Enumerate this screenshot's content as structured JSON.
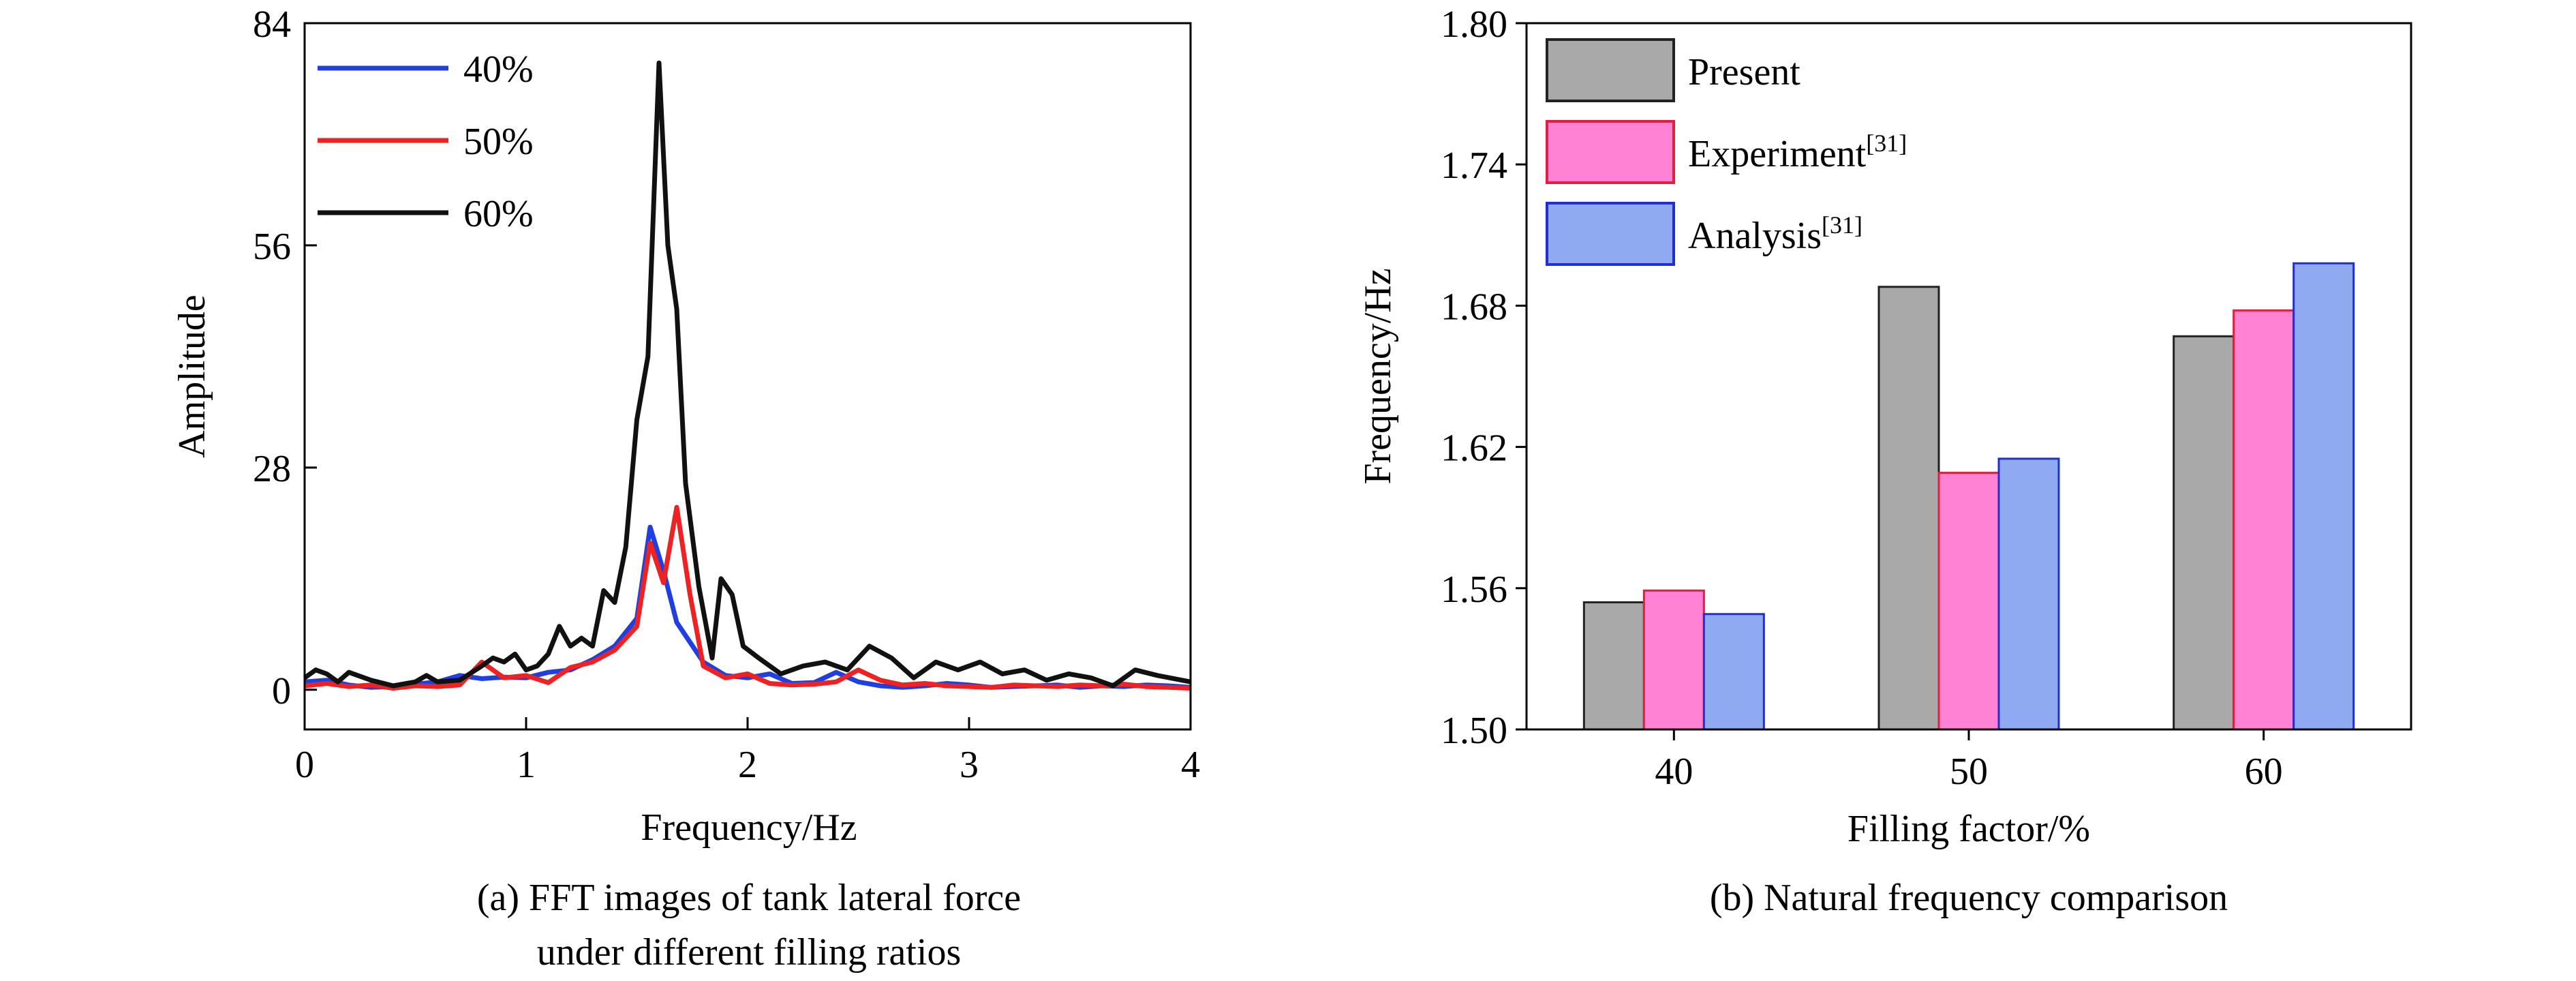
{
  "panels": {
    "a_caption_line1": "(a) FFT images of tank lateral force",
    "a_caption_line2": "under different filling ratios",
    "b_caption": "(b) Natural frequency comparison"
  },
  "chart_data": [
    {
      "type": "line",
      "xlabel": "Frequency/Hz",
      "ylabel": "Amplitude",
      "xlim": [
        0,
        4
      ],
      "ylim": [
        -5,
        84
      ],
      "xticks": [
        0,
        1,
        2,
        3,
        4
      ],
      "yticks": [
        0,
        28,
        56,
        84
      ],
      "grid": false,
      "legend_position": "top-left",
      "series": [
        {
          "name": "40%",
          "color": "#1f3fe0",
          "x": [
            0,
            0.1,
            0.2,
            0.3,
            0.4,
            0.5,
            0.6,
            0.7,
            0.8,
            0.9,
            1.0,
            1.1,
            1.2,
            1.3,
            1.4,
            1.5,
            1.56,
            1.62,
            1.68,
            1.74,
            1.8,
            1.9,
            2.0,
            2.1,
            2.2,
            2.3,
            2.4,
            2.5,
            2.6,
            2.7,
            2.8,
            2.9,
            3.0,
            3.1,
            3.2,
            3.3,
            3.4,
            3.5,
            3.6,
            3.7,
            3.8,
            3.9,
            4.0
          ],
          "y": [
            1.0,
            1.2,
            0.6,
            0.3,
            0.4,
            0.7,
            1.0,
            1.8,
            1.4,
            1.6,
            1.5,
            2.2,
            2.5,
            3.8,
            5.5,
            9.0,
            20.5,
            15.0,
            8.5,
            6.0,
            3.5,
            1.8,
            1.5,
            2.0,
            0.8,
            0.9,
            2.2,
            1.0,
            0.5,
            0.3,
            0.5,
            0.8,
            0.6,
            0.3,
            0.4,
            0.5,
            0.6,
            0.3,
            0.5,
            0.4,
            0.6,
            0.5,
            0.3
          ]
        },
        {
          "name": "50%",
          "color": "#ee2222",
          "x": [
            0,
            0.1,
            0.2,
            0.3,
            0.4,
            0.5,
            0.6,
            0.7,
            0.8,
            0.9,
            1.0,
            1.1,
            1.2,
            1.3,
            1.4,
            1.5,
            1.56,
            1.62,
            1.68,
            1.74,
            1.8,
            1.9,
            2.0,
            2.1,
            2.2,
            2.3,
            2.4,
            2.5,
            2.6,
            2.7,
            2.8,
            2.9,
            3.0,
            3.1,
            3.2,
            3.3,
            3.4,
            3.5,
            3.6,
            3.7,
            3.8,
            3.9,
            4.0
          ],
          "y": [
            0.5,
            0.8,
            0.4,
            0.6,
            0.2,
            0.5,
            0.4,
            0.6,
            3.5,
            1.5,
            1.8,
            0.9,
            2.8,
            3.5,
            5.0,
            8.0,
            18.5,
            13.5,
            23.0,
            12.0,
            3.0,
            1.5,
            2.0,
            0.8,
            0.6,
            0.7,
            1.0,
            2.5,
            1.2,
            0.6,
            0.8,
            0.5,
            0.4,
            0.3,
            0.6,
            0.5,
            0.4,
            0.6,
            0.5,
            0.7,
            0.4,
            0.3,
            0.2
          ]
        },
        {
          "name": "60%",
          "color": "#111111",
          "x": [
            0,
            0.05,
            0.1,
            0.15,
            0.2,
            0.3,
            0.4,
            0.5,
            0.55,
            0.6,
            0.7,
            0.8,
            0.85,
            0.9,
            0.95,
            1.0,
            1.05,
            1.1,
            1.15,
            1.2,
            1.25,
            1.3,
            1.35,
            1.4,
            1.45,
            1.5,
            1.55,
            1.6,
            1.64,
            1.68,
            1.72,
            1.78,
            1.84,
            1.88,
            1.93,
            1.98,
            2.05,
            2.15,
            2.25,
            2.35,
            2.45,
            2.55,
            2.65,
            2.75,
            2.85,
            2.95,
            3.05,
            3.15,
            3.25,
            3.35,
            3.45,
            3.55,
            3.65,
            3.75,
            3.85,
            4.0
          ],
          "y": [
            1.5,
            2.5,
            2.0,
            1.0,
            2.2,
            1.2,
            0.5,
            1.0,
            1.8,
            1.0,
            1.2,
            3.0,
            4.0,
            3.5,
            4.5,
            2.5,
            3.0,
            4.5,
            8.0,
            5.5,
            6.5,
            5.5,
            12.5,
            11.0,
            18.0,
            34.0,
            42.0,
            79.0,
            56.0,
            48.0,
            26.0,
            13.0,
            4.0,
            14.0,
            12.0,
            5.5,
            4.0,
            2.0,
            3.0,
            3.5,
            2.5,
            5.5,
            4.0,
            1.5,
            3.5,
            2.5,
            3.5,
            2.0,
            2.5,
            1.2,
            2.0,
            1.5,
            0.5,
            2.5,
            1.8,
            1.0
          ]
        }
      ]
    },
    {
      "type": "bar",
      "xlabel": "Filling factor/%",
      "ylabel": "Frequency/Hz",
      "categories": [
        "40",
        "50",
        "60"
      ],
      "ylim": [
        1.5,
        1.8
      ],
      "yticks": [
        "1.50",
        "1.56",
        "1.62",
        "1.68",
        "1.74",
        "1.80"
      ],
      "grid": false,
      "legend_position": "top-left",
      "series": [
        {
          "name": "Present",
          "sup": "",
          "fill": "#a9a9a9",
          "stroke": "#222222",
          "values": [
            1.554,
            1.688,
            1.667
          ]
        },
        {
          "name": "Experiment",
          "sup": "[31]",
          "fill": "#ff82d4",
          "stroke": "#e02040",
          "values": [
            1.559,
            1.609,
            1.678
          ]
        },
        {
          "name": "Analysis",
          "sup": "[31]",
          "fill": "#8faaf0",
          "stroke": "#2030d0",
          "values": [
            1.549,
            1.615,
            1.698
          ]
        }
      ]
    }
  ]
}
